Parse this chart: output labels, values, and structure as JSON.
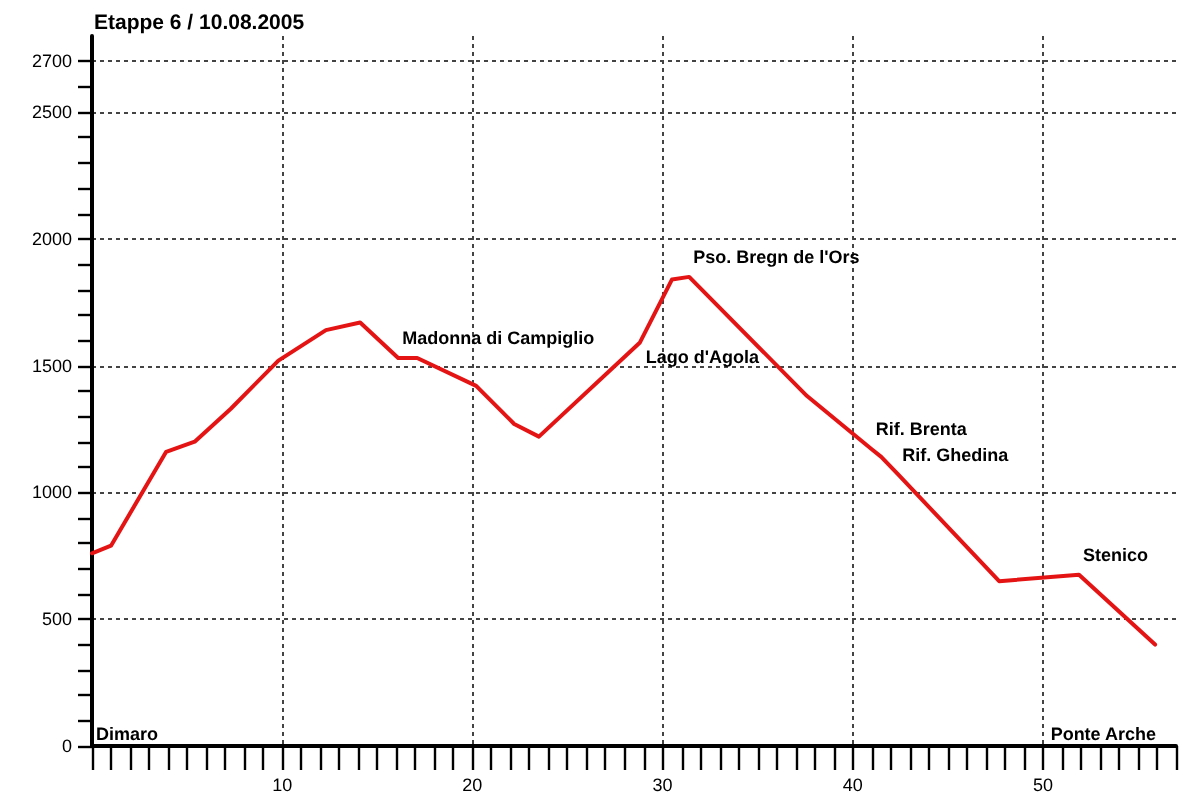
{
  "chart_data": {
    "type": "line",
    "title": "Etappe 6 / 10.08.2005",
    "x": [
      0,
      1.0,
      3.9,
      5.4,
      7.3,
      9.8,
      12.3,
      14.1,
      16.1,
      17.1,
      20.2,
      22.2,
      23.5,
      28.8,
      30.5,
      31.4,
      37.6,
      41.0,
      41.5,
      42.4,
      47.7,
      51.9,
      55.9
    ],
    "series": [
      {
        "color": "#e51414",
        "values": [
          760,
          790,
          1160,
          1200,
          1330,
          1520,
          1640,
          1670,
          1530,
          1530,
          1420,
          1270,
          1220,
          1590,
          1840,
          1850,
          1380,
          1170,
          1140,
          1070,
          650,
          675,
          400
        ]
      }
    ],
    "xlim": [
      0,
      57
    ],
    "xticks": [
      {
        "value": 0,
        "label": null
      },
      {
        "value": 1,
        "label": null
      },
      {
        "value": 2,
        "label": null
      },
      {
        "value": 3,
        "label": null
      },
      {
        "value": 4,
        "label": null
      },
      {
        "value": 5,
        "label": null
      },
      {
        "value": 6,
        "label": null
      },
      {
        "value": 7,
        "label": null
      },
      {
        "value": 8,
        "label": null
      },
      {
        "value": 9,
        "label": null
      },
      10,
      {
        "value": 11,
        "label": null
      },
      {
        "value": 12,
        "label": null
      },
      {
        "value": 13,
        "label": null
      },
      {
        "value": 14,
        "label": null
      },
      {
        "value": 15,
        "label": null
      },
      {
        "value": 16,
        "label": null
      },
      {
        "value": 17,
        "label": null
      },
      {
        "value": 18,
        "label": null
      },
      {
        "value": 19,
        "label": null
      },
      20,
      {
        "value": 21,
        "label": null
      },
      {
        "value": 22,
        "label": null
      },
      {
        "value": 23,
        "label": null
      },
      {
        "value": 24,
        "label": null
      },
      {
        "value": 25,
        "label": null
      },
      {
        "value": 26,
        "label": null
      },
      {
        "value": 27,
        "label": null
      },
      {
        "value": 28,
        "label": null
      },
      {
        "value": 29,
        "label": null
      },
      30,
      {
        "value": 31,
        "label": null
      },
      {
        "value": 32,
        "label": null
      },
      {
        "value": 33,
        "label": null
      },
      {
        "value": 34,
        "label": null
      },
      {
        "value": 35,
        "label": null
      },
      {
        "value": 36,
        "label": null
      },
      {
        "value": 37,
        "label": null
      },
      {
        "value": 38,
        "label": null
      },
      {
        "value": 39,
        "label": null
      },
      40,
      {
        "value": 41,
        "label": null
      },
      {
        "value": 42,
        "label": null
      },
      {
        "value": 43,
        "label": null
      },
      {
        "value": 44,
        "label": null
      },
      {
        "value": 45,
        "label": null
      },
      {
        "value": 46,
        "label": null
      },
      {
        "value": 47,
        "label": null
      },
      {
        "value": 48,
        "label": null
      },
      {
        "value": 49,
        "label": null
      },
      50,
      {
        "value": 51,
        "label": null
      },
      {
        "value": 52,
        "label": null
      },
      {
        "value": 53,
        "label": null
      },
      {
        "value": 54,
        "label": null
      },
      {
        "value": 55,
        "label": null
      },
      {
        "value": 56,
        "label": null
      },
      {
        "value": 57,
        "label": null
      }
    ],
    "ylim": [
      0,
      2800
    ],
    "yticks": [
      0,
      {
        "value": 100,
        "label": null
      },
      {
        "value": 200,
        "label": null
      },
      {
        "value": 300,
        "label": null
      },
      {
        "value": 400,
        "label": null
      },
      500,
      {
        "value": 600,
        "label": null
      },
      {
        "value": 700,
        "label": null
      },
      {
        "value": 800,
        "label": null
      },
      {
        "value": 900,
        "label": null
      },
      1000,
      {
        "value": 1100,
        "label": null
      },
      {
        "value": 1200,
        "label": null
      },
      {
        "value": 1300,
        "label": null
      },
      {
        "value": 1400,
        "label": null
      },
      1500,
      {
        "value": 1600,
        "label": null
      },
      {
        "value": 1700,
        "label": null
      },
      {
        "value": 1800,
        "label": null
      },
      {
        "value": 1900,
        "label": null
      },
      2000,
      {
        "value": 2100,
        "label": null
      },
      {
        "value": 2200,
        "label": null
      },
      {
        "value": 2300,
        "label": null
      },
      {
        "value": 2400,
        "label": null
      },
      2500,
      {
        "value": 2600,
        "label": null
      },
      2700
    ],
    "grid": true,
    "marker": "none",
    "line_style": "solid",
    "annotations": [
      "Dimaro",
      {
        "text": "Madonna di Campiglio",
        "x": 16.1,
        "y": 1530
      },
      {
        "text": "Lago d'Agola",
        "x": 28.8,
        "y": 1590
      },
      {
        "text": "Pso. Bregn de l'Ors",
        "x": 31.4,
        "y": 1850
      },
      {
        "text": "Rif. Brenta",
        "x": 41.0,
        "y": 1170
      },
      {
        "text": "Rif. Ghedina",
        "x": 42.4,
        "y": 1070
      },
      {
        "text": "Stenico",
        "x": 51.9,
        "y": 675
      },
      "Ponte Arche"
    ]
  }
}
